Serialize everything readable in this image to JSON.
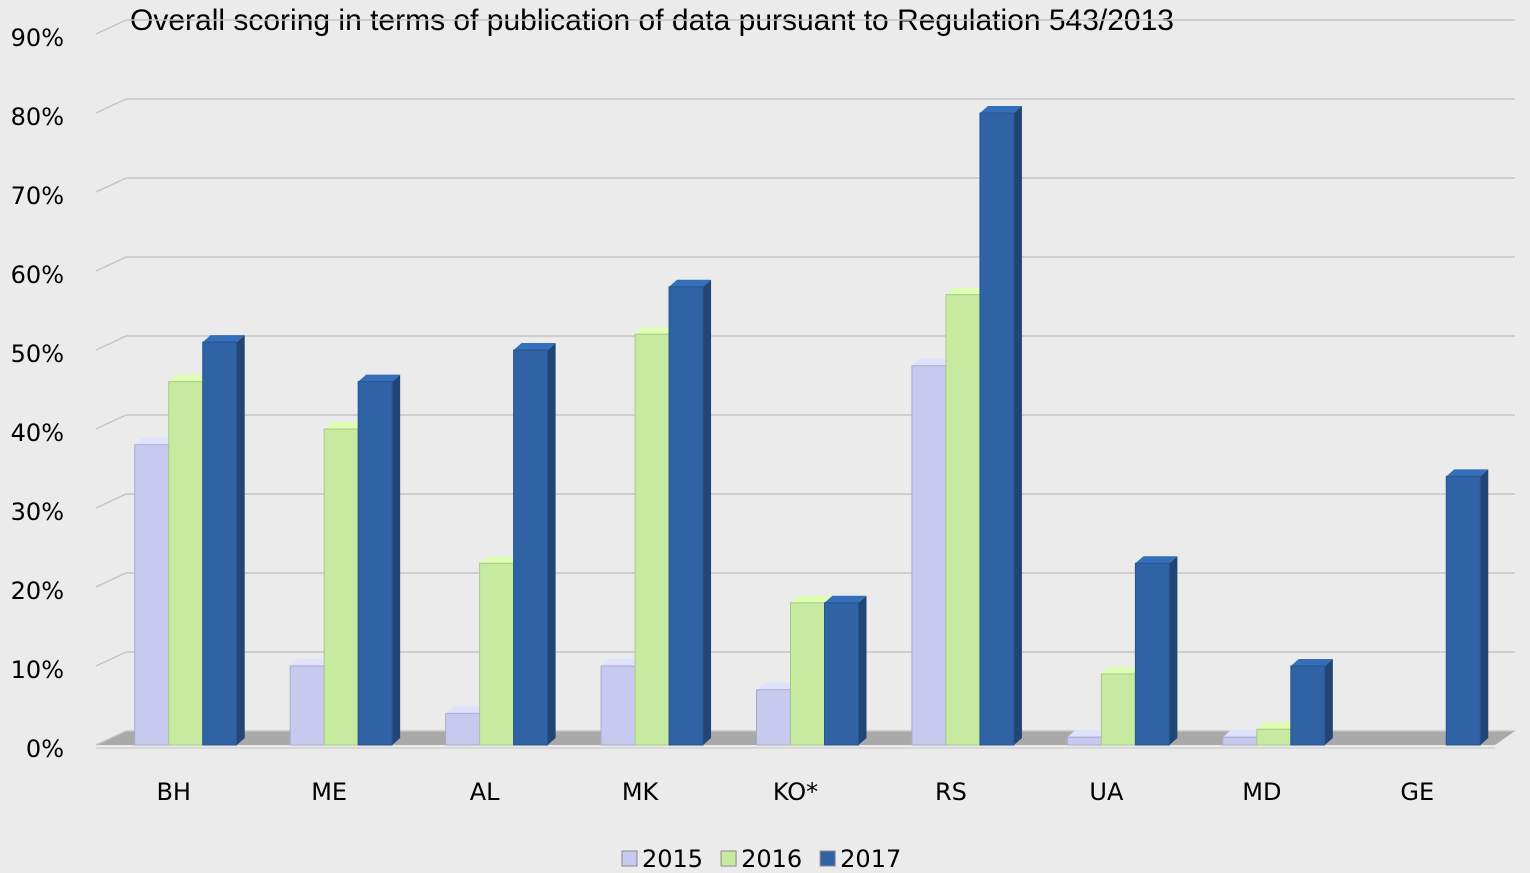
{
  "chart_data": {
    "type": "bar3d",
    "title": "Overall scoring in terms of publication of data pursuant to Regulation 543/2013",
    "categories": [
      "BH",
      "ME",
      "AL",
      "MK",
      "KO*",
      "RS",
      "UA",
      "MD",
      "GE"
    ],
    "series": [
      {
        "name": "2015",
        "color": "#c8c9ef",
        "values": [
          38,
          10,
          4,
          10,
          7,
          48,
          1,
          1,
          0
        ]
      },
      {
        "name": "2016",
        "color": "#c6eba0",
        "values": [
          46,
          40,
          23,
          52,
          18,
          57,
          9,
          2,
          0
        ]
      },
      {
        "name": "2017",
        "color": "#2f63a6",
        "values": [
          51,
          46,
          50,
          58,
          18,
          80,
          23,
          10,
          34
        ]
      }
    ],
    "ylim": [
      0,
      90
    ],
    "yticks": [
      {
        "value": 0,
        "label": "0%"
      },
      {
        "value": 10,
        "label": "10%"
      },
      {
        "value": 20,
        "label": "20%"
      },
      {
        "value": 30,
        "label": "30%"
      },
      {
        "value": 40,
        "label": "40%"
      },
      {
        "value": 50,
        "label": "50%"
      },
      {
        "value": 60,
        "label": "60%"
      },
      {
        "value": 70,
        "label": "70%"
      },
      {
        "value": 80,
        "label": "80%"
      },
      {
        "value": 90,
        "label": "90%"
      }
    ],
    "grid": true,
    "legend": "bottom"
  }
}
